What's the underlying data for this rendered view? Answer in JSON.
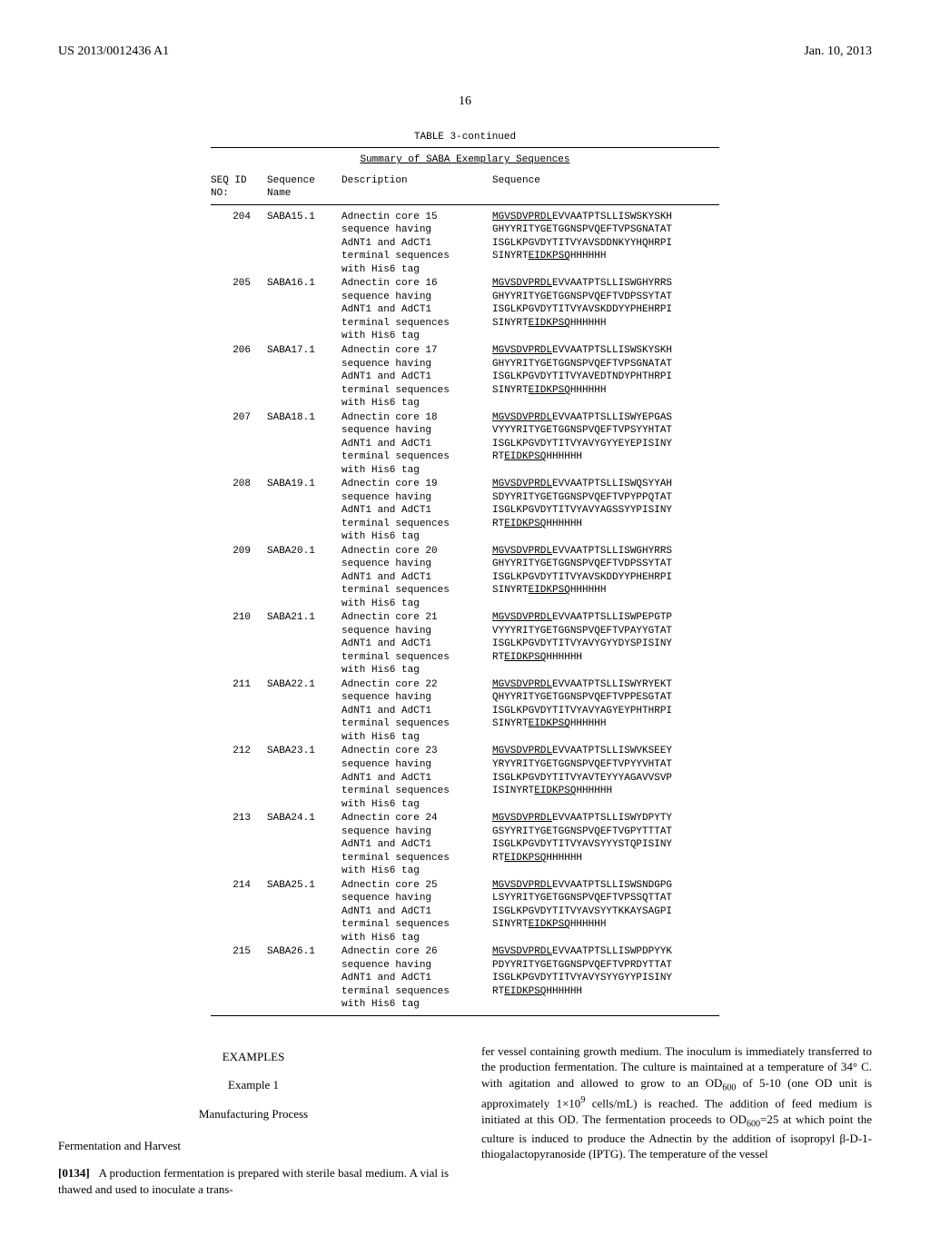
{
  "header": {
    "left": "US 2013/0012436 A1",
    "right": "Jan. 10, 2013"
  },
  "page_number": "16",
  "table": {
    "title": "TABLE 3-continued",
    "subtitle": "Summary of SABA Exemplary Sequences",
    "headers": {
      "seq_id": "SEQ ID\nNO:",
      "name": "Sequence\nName",
      "desc": "Description",
      "seq": "Sequence"
    },
    "rows": [
      {
        "seq_id": "204",
        "name": "SABA15.1",
        "desc": [
          "Adnectin core 15",
          "sequence having",
          "AdNT1 and AdCT1",
          "terminal sequences",
          "with His6 tag"
        ],
        "seq": [
          {
            "lead": "MGVSDVPRDL",
            "rest": "EVVAATPTSLLISWSKYSKH"
          },
          {
            "lead": "",
            "rest": "GHYYRITYGETGGNSPVQEFTVPSGNATAT"
          },
          {
            "lead": "",
            "rest": "ISGLKPGVDYTITVYAVSDDNKYYHQHRPI"
          },
          {
            "lead": "",
            "rest": "SINYRT",
            "tail_u": "EIDKPSQ",
            "tail": "HHHHHH"
          }
        ]
      },
      {
        "seq_id": "205",
        "name": "SABA16.1",
        "desc": [
          "Adnectin core 16",
          "sequence having",
          "AdNT1 and AdCT1",
          "terminal sequences",
          "with His6 tag"
        ],
        "seq": [
          {
            "lead": "MGVSDVPRDL",
            "rest": "EVVAATPTSLLISWGHYRRS"
          },
          {
            "lead": "",
            "rest": "GHYYRITYGETGGNSPVQEFTVDPSSYTAT"
          },
          {
            "lead": "",
            "rest": "ISGLKPGVDYTITVYAVSKDDYYPHEHRPI"
          },
          {
            "lead": "",
            "rest": "SINYRT",
            "tail_u": "EIDKPSQ",
            "tail": "HHHHHH"
          }
        ]
      },
      {
        "seq_id": "206",
        "name": "SABA17.1",
        "desc": [
          "Adnectin core 17",
          "sequence having",
          "AdNT1 and AdCT1",
          "terminal sequences",
          "with His6 tag"
        ],
        "seq": [
          {
            "lead": "MGVSDVPRDL",
            "rest": "EVVAATPTSLLISWSKYSKH"
          },
          {
            "lead": "",
            "rest": "GHYYRITYGETGGNSPVQEFTVPSGNATAT"
          },
          {
            "lead": "",
            "rest": "ISGLKPGVDYTITVYAVEDTNDYPHTHRPI"
          },
          {
            "lead": "",
            "rest": "SINYRT",
            "tail_u": "EIDKPSQ",
            "tail": "HHHHHH"
          }
        ]
      },
      {
        "seq_id": "207",
        "name": "SABA18.1",
        "desc": [
          "Adnectin core 18",
          "sequence having",
          "AdNT1 and AdCT1",
          "terminal sequences",
          "with His6 tag"
        ],
        "seq": [
          {
            "lead": "MGVSDVPRDL",
            "rest": "EVVAATPTSLLISWYEPGAS"
          },
          {
            "lead": "",
            "rest": "VYYYRITYGETGGNSPVQEFTVPSYYHTAT"
          },
          {
            "lead": "",
            "rest": "ISGLKPGVDYTITVYAVYGYYEYEPISINY"
          },
          {
            "lead": "",
            "rest": "RT",
            "tail_u": "EIDKPSQ",
            "tail": "HHHHHH"
          }
        ]
      },
      {
        "seq_id": "208",
        "name": "SABA19.1",
        "desc": [
          "Adnectin core 19",
          "sequence having",
          "AdNT1 and AdCT1",
          "terminal sequences",
          "with His6 tag"
        ],
        "seq": [
          {
            "lead": "MGVSDVPRDL",
            "rest": "EVVAATPTSLLISWQSYYAH"
          },
          {
            "lead": "",
            "rest": "SDYYRITYGETGGNSPVQEFTVPYPPQTAT"
          },
          {
            "lead": "",
            "rest": "ISGLKPGVDYTITVYAVYAGSSYYPISINY"
          },
          {
            "lead": "",
            "rest": "RT",
            "tail_u": "EIDKPSQ",
            "tail": "HHHHHH"
          }
        ]
      },
      {
        "seq_id": "209",
        "name": "SABA20.1",
        "desc": [
          "Adnectin core 20",
          "sequence having",
          "AdNT1 and AdCT1",
          "terminal sequences",
          "with His6 tag"
        ],
        "seq": [
          {
            "lead": "MGVSDVPRDL",
            "rest": "EVVAATPTSLLISWGHYRRS"
          },
          {
            "lead": "",
            "rest": "GHYYRITYGETGGNSPVQEFTVDPSSYTAT"
          },
          {
            "lead": "",
            "rest": "ISGLKPGVDYTITVYAVSKDDYYPHEHRPI"
          },
          {
            "lead": "",
            "rest": "SINYRT",
            "tail_u": "EIDKPSQ",
            "tail": "HHHHHH"
          }
        ]
      },
      {
        "seq_id": "210",
        "name": "SABA21.1",
        "desc": [
          "Adnectin core 21",
          "sequence having",
          "AdNT1 and AdCT1",
          "terminal sequences",
          "with His6 tag"
        ],
        "seq": [
          {
            "lead": "MGVSDVPRDL",
            "rest": "EVVAATPTSLLISWPEPGTP"
          },
          {
            "lead": "",
            "rest": "VYYYRITYGETGGNSPVQEFTVPAYYGTAT"
          },
          {
            "lead": "",
            "rest": "ISGLKPGVDYTITVYAVYGYYDYSPISINY"
          },
          {
            "lead": "",
            "rest": "RT",
            "tail_u": "EIDKPSQ",
            "tail": "HHHHHH"
          }
        ]
      },
      {
        "seq_id": "211",
        "name": "SABA22.1",
        "desc": [
          "Adnectin core 22",
          "sequence having",
          "AdNT1 and AdCT1",
          "terminal sequences",
          "with His6 tag"
        ],
        "seq": [
          {
            "lead": "MGVSDVPRDL",
            "rest": "EVVAATPTSLLISWYRYEKT"
          },
          {
            "lead": "",
            "rest": "QHYYRITYGETGGNSPVQEFTVPPESGTAT"
          },
          {
            "lead": "",
            "rest": "ISGLKPGVDYTITVYAVYAGYEYPHTHRPI"
          },
          {
            "lead": "",
            "rest": "SINYRT",
            "tail_u": "EIDKPSQ",
            "tail": "HHHHHH"
          }
        ]
      },
      {
        "seq_id": "212",
        "name": "SABA23.1",
        "desc": [
          "Adnectin core 23",
          "sequence having",
          "AdNT1 and AdCT1",
          "terminal sequences",
          "with His6 tag"
        ],
        "seq": [
          {
            "lead": "MGVSDVPRDL",
            "rest": "EVVAATPTSLLISWVKSEEY"
          },
          {
            "lead": "",
            "rest": "YRYYRITYGETGGNSPVQEFTVPYYVHTAT"
          },
          {
            "lead": "",
            "rest": "ISGLKPGVDYTITVYAVTEYYYAGAVVSVP"
          },
          {
            "lead": "",
            "rest": "ISINYRT",
            "tail_u": "EIDKPSQ",
            "tail": "HHHHHH"
          }
        ]
      },
      {
        "seq_id": "213",
        "name": "SABA24.1",
        "desc": [
          "Adnectin core 24",
          "sequence having",
          "AdNT1 and AdCT1",
          "terminal sequences",
          "with His6 tag"
        ],
        "seq": [
          {
            "lead": "MGVSDVPRDL",
            "rest": "EVVAATPTSLLISWYDPYTY"
          },
          {
            "lead": "",
            "rest": "GSYYRITYGETGGNSPVQEFTVGPYTTTAT"
          },
          {
            "lead": "",
            "rest": "ISGLKPGVDYTITVYAVSYYYSTQPISINY"
          },
          {
            "lead": "",
            "rest": "RT",
            "tail_u": "EIDKPSQ",
            "tail": "HHHHHH"
          }
        ]
      },
      {
        "seq_id": "214",
        "name": "SABA25.1",
        "desc": [
          "Adnectin core 25",
          "sequence having",
          "AdNT1 and AdCT1",
          "terminal sequences",
          "with His6 tag"
        ],
        "seq": [
          {
            "lead": "MGVSDVPRDL",
            "rest": "EVVAATPTSLLISWSNDGPG"
          },
          {
            "lead": "",
            "rest": "LSYYRITYGETGGNSPVQEFTVPSSQTTAT"
          },
          {
            "lead": "",
            "rest": "ISGLKPGVDYTITVYAVSYYTKKAYSAGPI"
          },
          {
            "lead": "",
            "rest": "SINYRT",
            "tail_u": "EIDKPSQ",
            "tail": "HHHHHH"
          }
        ]
      },
      {
        "seq_id": "215",
        "name": "SABA26.1",
        "desc": [
          "Adnectin core 26",
          "sequence having",
          "AdNT1 and AdCT1",
          "terminal sequences",
          "with His6 tag"
        ],
        "seq": [
          {
            "lead": "MGVSDVPRDL",
            "rest": "EVVAATPTSLLISWPDPYYK"
          },
          {
            "lead": "",
            "rest": "PDYYRITYGETGGNSPVQEFTVPRDYTTAT"
          },
          {
            "lead": "",
            "rest": "ISGLKPGVDYTITVYAVYSYYGYYPISINY"
          },
          {
            "lead": "",
            "rest": "RT",
            "tail_u": "EIDKPSQ",
            "tail": "HHHHHH"
          }
        ]
      }
    ]
  },
  "body": {
    "examples_heading": "EXAMPLES",
    "example_number": "Example 1",
    "example_title": "Manufacturing Process",
    "subheading": "Fermentation and Harvest",
    "para_num": "[0134]",
    "left_para": "A production fermentation is prepared with sterile basal medium. A vial is thawed and used to inoculate a trans-",
    "right_para_1": "fer vessel containing growth medium. The inoculum is immediately transferred to the production fermentation. The culture is maintained at a temperature of 34° C. with agitation and allowed to grow to an OD",
    "right_para_2": " of 5-10 (one OD unit is approximately 1×10",
    "right_para_3": " cells/mL) is reached. The addition of feed medium is initiated at this OD. The fermentation proceeds to OD",
    "right_para_4": "=25 at which point the culture is induced to produce the Adnectin by the addition of isopropyl β-D-1-thiogalactopyranoside (IPTG). The temperature of the vessel",
    "sub600": "600",
    "sup9": "9"
  }
}
